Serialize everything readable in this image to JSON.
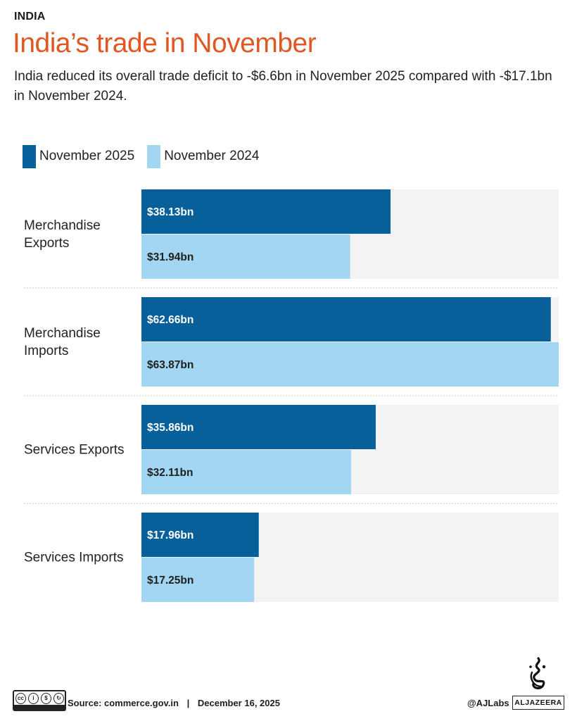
{
  "header": {
    "kicker": "INDIA",
    "title": "India’s trade in November",
    "subtitle": "India reduced its overall trade deficit to -$6.6bn in November 2025 compared with -$17.1bn in November 2024."
  },
  "legend": [
    {
      "label": "November 2025",
      "color": "#08609a"
    },
    {
      "label": "November 2024",
      "color": "#a2d6f2"
    }
  ],
  "chart_data": {
    "type": "bar",
    "orientation": "horizontal",
    "categories": [
      [
        "Merchandise",
        "Exports"
      ],
      [
        "Merchandise",
        "Imports"
      ],
      [
        "Services Exports"
      ],
      [
        "Services Imports"
      ]
    ],
    "series": [
      {
        "name": "November 2025",
        "color": "#08609a",
        "values": [
          38.13,
          62.66,
          35.86,
          17.96
        ],
        "labels": [
          "$38.13bn",
          "$62.66bn",
          "$35.86bn",
          "$17.96bn"
        ]
      },
      {
        "name": "November 2024",
        "color": "#a2d6f2",
        "values": [
          31.94,
          63.87,
          32.11,
          17.25
        ],
        "labels": [
          "$31.94bn",
          "$63.87bn",
          "$32.11bn",
          "$17.25bn"
        ]
      }
    ],
    "xlim": [
      0,
      63.87
    ],
    "background_color": "#f3f3f3",
    "grid": false
  },
  "footer": {
    "license_badge": "cc BY NC SA",
    "source": "Source:  commerce.gov.in",
    "date": "December 16, 2025",
    "separator": "|",
    "handle": "@AJLabs",
    "logo_text": "ALJAZEERA"
  }
}
